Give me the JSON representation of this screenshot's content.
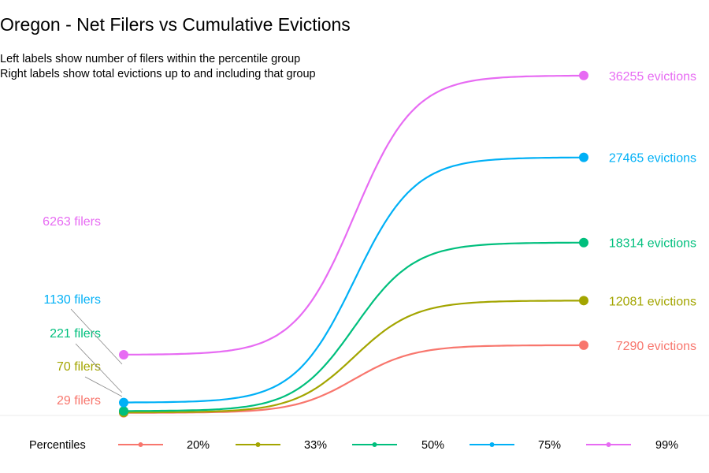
{
  "chart_data": {
    "type": "line",
    "title": "Oregon - Net Filers vs Cumulative Evictions",
    "subtitle_lines": [
      "Left labels show number of filers within the percentile group",
      "Right labels show total evictions up to and including that group"
    ],
    "legend_title": "Percentiles",
    "series": [
      {
        "name": "20%",
        "color": "#F8766D",
        "filers": 29,
        "evictions": 7290,
        "left_label": "29 filers",
        "right_label": "7290 evictions"
      },
      {
        "name": "33%",
        "color": "#A3A500",
        "filers": 70,
        "evictions": 12081,
        "left_label": "70 filers",
        "right_label": "12081 evictions"
      },
      {
        "name": "50%",
        "color": "#00BF7D",
        "filers": 221,
        "evictions": 18314,
        "left_label": "221 filers",
        "right_label": "18314 evictions"
      },
      {
        "name": "75%",
        "color": "#00B0F6",
        "filers": 1130,
        "evictions": 27465,
        "left_label": "1130 filers",
        "right_label": "27465 evictions"
      },
      {
        "name": "99%",
        "color": "#E76BF3",
        "filers": 6263,
        "evictions": 36255,
        "left_label": "6263 filers",
        "right_label": "36255 evictions"
      }
    ],
    "ylim": [
      0,
      37000
    ]
  }
}
